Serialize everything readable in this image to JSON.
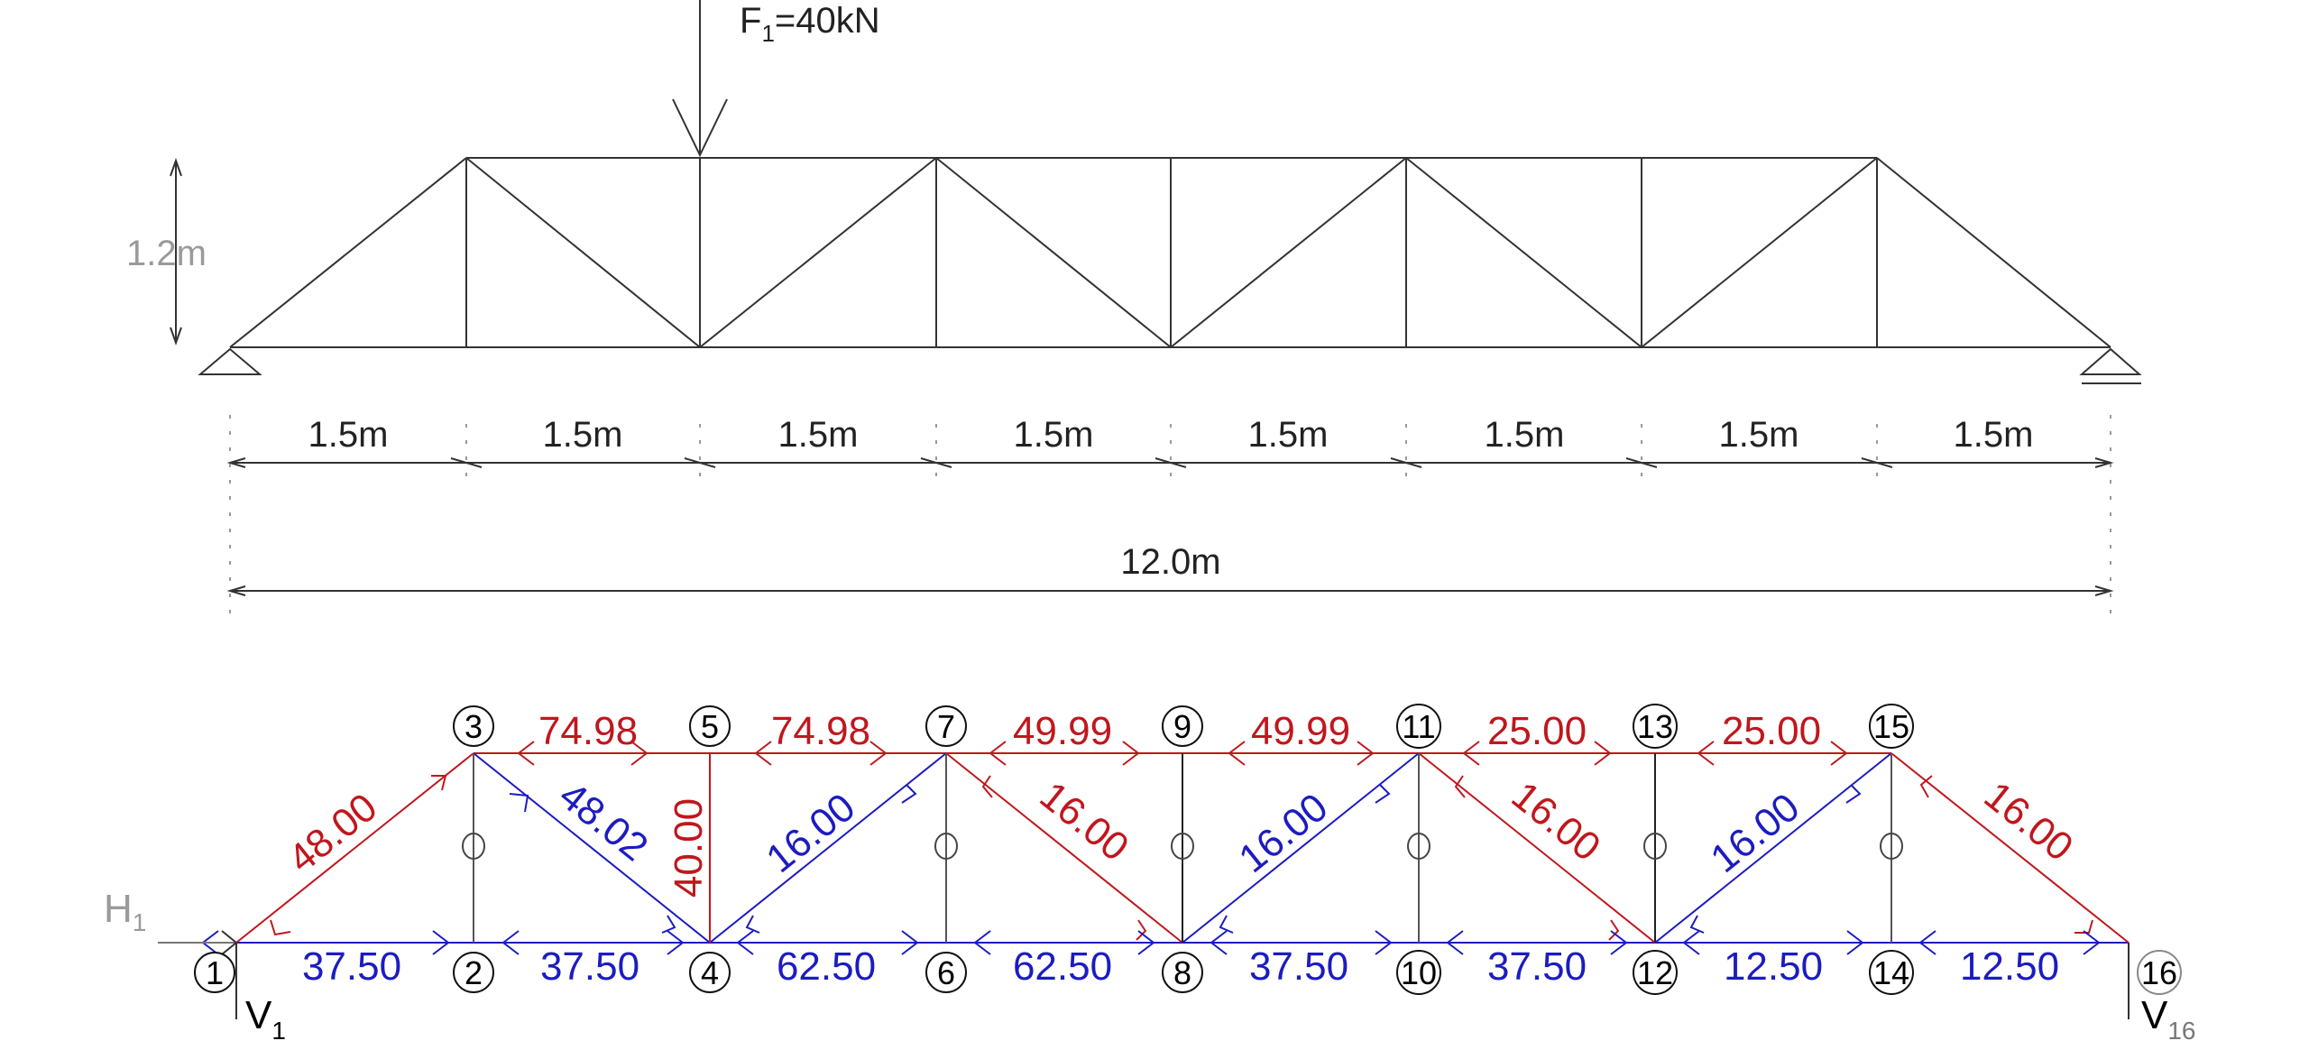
{
  "load": {
    "label": "F",
    "subscript": "1",
    "value": "=40kN"
  },
  "dimensions": {
    "height": "1.2m",
    "panels": [
      "1.5m",
      "1.5m",
      "1.5m",
      "1.5m",
      "1.5m",
      "1.5m",
      "1.5m",
      "1.5m"
    ],
    "total": "12.0m"
  },
  "reactions": {
    "h1": {
      "label": "H",
      "subscript": "1"
    },
    "v1": {
      "label": "V",
      "subscript": "1"
    },
    "v16": {
      "label": "V",
      "subscript": "16"
    }
  },
  "nodes": [
    "1",
    "2",
    "3",
    "4",
    "5",
    "6",
    "7",
    "8",
    "9",
    "10",
    "11",
    "12",
    "13",
    "14",
    "15",
    "16"
  ],
  "member_forces": {
    "top": [
      {
        "value": "74.98",
        "type": "compression"
      },
      {
        "value": "74.98",
        "type": "compression"
      },
      {
        "value": "49.99",
        "type": "compression"
      },
      {
        "value": "49.99",
        "type": "compression"
      },
      {
        "value": "25.00",
        "type": "compression"
      },
      {
        "value": "25.00",
        "type": "compression"
      }
    ],
    "bottom": [
      {
        "value": "37.50",
        "type": "tension"
      },
      {
        "value": "37.50",
        "type": "tension"
      },
      {
        "value": "62.50",
        "type": "tension"
      },
      {
        "value": "62.50",
        "type": "tension"
      },
      {
        "value": "37.50",
        "type": "tension"
      },
      {
        "value": "37.50",
        "type": "tension"
      },
      {
        "value": "12.50",
        "type": "tension"
      },
      {
        "value": "12.50",
        "type": "tension"
      }
    ],
    "diagonals": [
      {
        "value": "48.00",
        "type": "compression"
      },
      {
        "value": "48.02",
        "type": "tension"
      },
      {
        "value": "16.00",
        "type": "tension"
      },
      {
        "value": "16.00",
        "type": "compression"
      },
      {
        "value": "16.00",
        "type": "tension"
      },
      {
        "value": "16.00",
        "type": "compression"
      },
      {
        "value": "16.00",
        "type": "tension"
      },
      {
        "value": "16.00",
        "type": "compression"
      }
    ],
    "verticals": [
      {
        "value": "40.00",
        "type": "compression"
      }
    ]
  },
  "colors": {
    "compression": "#c0171d",
    "tension": "#1c1cc0",
    "zero": "#555555"
  }
}
